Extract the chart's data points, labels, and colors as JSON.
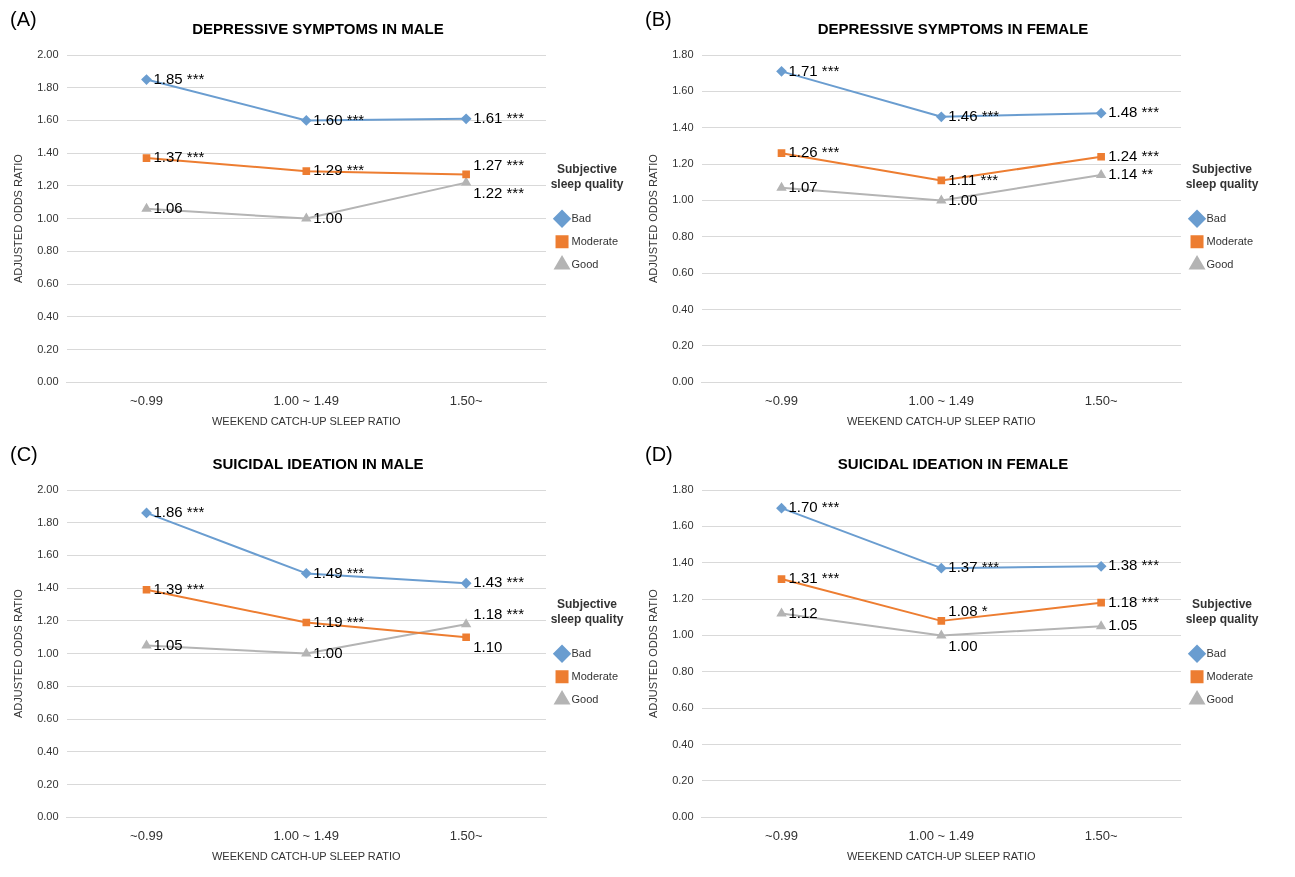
{
  "chart_data": [
    {
      "type": "line",
      "title": "DEPRESSIVE SYMPTOMS IN MALE",
      "xlabel": "WEEKEND CATCH-UP SLEEP RATIO",
      "ylabel": "ADJUSTED ODDS RATIO",
      "legend_title": "Subjective sleep quality",
      "legend": "right",
      "grid": "y",
      "annotations": [
        "(A)"
      ],
      "categories": [
        "~0.99",
        "1.00 ~ 1.49",
        "1.50~"
      ],
      "ylim": [
        0,
        2
      ],
      "yticks": [
        {
          "value": 0,
          "label": "0.00"
        },
        {
          "value": 0.2,
          "label": "0.20"
        },
        {
          "value": 0.4,
          "label": "0.40"
        },
        {
          "value": 0.6,
          "label": "0.60"
        },
        {
          "value": 0.8,
          "label": "0.80"
        },
        {
          "value": 1,
          "label": "1.00"
        },
        {
          "value": 1.2,
          "label": "1.20"
        },
        {
          "value": 1.4,
          "label": "1.40"
        },
        {
          "value": 1.6,
          "label": "1.60"
        },
        {
          "value": 1.8,
          "label": "1.80"
        },
        {
          "value": 2,
          "label": "2.00"
        }
      ],
      "series": [
        {
          "name": "Bad",
          "color": "#6a9dd0",
          "marker": "diamond",
          "values": [
            1.85,
            1.6,
            1.61
          ],
          "value_labels": [
            "1.85 ***",
            "1.60 ***",
            "1.61 ***"
          ]
        },
        {
          "name": "Moderate",
          "color": "#ed7d31",
          "marker": "square",
          "values": [
            1.37,
            1.29,
            1.27
          ],
          "value_labels": [
            "1.37 ***",
            "1.29 ***",
            "1.27 ***"
          ]
        },
        {
          "name": "Good",
          "color": "#b4b4b4",
          "marker": "triangle",
          "values": [
            1.06,
            1.0,
            1.22
          ],
          "value_labels": [
            "1.06",
            "1.00",
            "1.22 ***"
          ]
        }
      ]
    },
    {
      "type": "line",
      "title": "DEPRESSIVE SYMPTOMS IN FEMALE",
      "xlabel": "WEEKEND CATCH-UP SLEEP RATIO",
      "ylabel": "ADJUSTED ODDS RATIO",
      "legend_title": "Subjective sleep quality",
      "legend": "right",
      "grid": "y",
      "annotations": [
        "(B)"
      ],
      "categories": [
        "~0.99",
        "1.00 ~ 1.49",
        "1.50~"
      ],
      "ylim": [
        0,
        1.8
      ],
      "yticks": [
        {
          "value": 0,
          "label": "0.00"
        },
        {
          "value": 0.2,
          "label": "0.20"
        },
        {
          "value": 0.4,
          "label": "0.40"
        },
        {
          "value": 0.6,
          "label": "0.60"
        },
        {
          "value": 0.8,
          "label": "0.80"
        },
        {
          "value": 1,
          "label": "1.00"
        },
        {
          "value": 1.2,
          "label": "1.20"
        },
        {
          "value": 1.4,
          "label": "1.40"
        },
        {
          "value": 1.6,
          "label": "1.60"
        },
        {
          "value": 1.8,
          "label": "1.80"
        }
      ],
      "series": [
        {
          "name": "Bad",
          "color": "#6a9dd0",
          "marker": "diamond",
          "values": [
            1.71,
            1.46,
            1.48
          ],
          "value_labels": [
            "1.71 ***",
            "1.46 ***",
            "1.48 ***"
          ]
        },
        {
          "name": "Moderate",
          "color": "#ed7d31",
          "marker": "square",
          "values": [
            1.26,
            1.11,
            1.24
          ],
          "value_labels": [
            "1.26 ***",
            "1.11 ***",
            "1.24 ***"
          ]
        },
        {
          "name": "Good",
          "color": "#b4b4b4",
          "marker": "triangle",
          "values": [
            1.07,
            1.0,
            1.14
          ],
          "value_labels": [
            "1.07",
            "1.00",
            "1.14 **"
          ]
        }
      ]
    },
    {
      "type": "line",
      "title": "SUICIDAL IDEATION IN MALE",
      "xlabel": "WEEKEND CATCH-UP SLEEP RATIO",
      "ylabel": "ADJUSTED ODDS RATIO",
      "legend_title": "Subjective sleep quality",
      "legend": "right",
      "grid": "y",
      "annotations": [
        "(C)"
      ],
      "categories": [
        "~0.99",
        "1.00 ~ 1.49",
        "1.50~"
      ],
      "ylim": [
        0,
        2
      ],
      "yticks": [
        {
          "value": 0,
          "label": "0.00"
        },
        {
          "value": 0.2,
          "label": "0.20"
        },
        {
          "value": 0.4,
          "label": "0.40"
        },
        {
          "value": 0.6,
          "label": "0.60"
        },
        {
          "value": 0.8,
          "label": "0.80"
        },
        {
          "value": 1,
          "label": "1.00"
        },
        {
          "value": 1.2,
          "label": "1.20"
        },
        {
          "value": 1.4,
          "label": "1.40"
        },
        {
          "value": 1.6,
          "label": "1.60"
        },
        {
          "value": 1.8,
          "label": "1.80"
        },
        {
          "value": 2,
          "label": "2.00"
        }
      ],
      "series": [
        {
          "name": "Bad",
          "color": "#6a9dd0",
          "marker": "diamond",
          "values": [
            1.86,
            1.49,
            1.43
          ],
          "value_labels": [
            "1.86 ***",
            "1.49 ***",
            "1.43 ***"
          ]
        },
        {
          "name": "Moderate",
          "color": "#ed7d31",
          "marker": "square",
          "values": [
            1.39,
            1.19,
            1.1
          ],
          "value_labels": [
            "1.39 ***",
            "1.19 ***",
            "1.10"
          ]
        },
        {
          "name": "Good",
          "color": "#b4b4b4",
          "marker": "triangle",
          "values": [
            1.05,
            1.0,
            1.18
          ],
          "value_labels": [
            "1.05",
            "1.00",
            "1.18 ***"
          ]
        }
      ]
    },
    {
      "type": "line",
      "title": "SUICIDAL IDEATION IN FEMALE",
      "xlabel": "WEEKEND CATCH-UP SLEEP RATIO",
      "ylabel": "ADJUSTED ODDS RATIO",
      "legend_title": "Subjective sleep quality",
      "legend": "right",
      "grid": "y",
      "annotations": [
        "(D)"
      ],
      "categories": [
        "~0.99",
        "1.00 ~ 1.49",
        "1.50~"
      ],
      "ylim": [
        0,
        1.8
      ],
      "yticks": [
        {
          "value": 0,
          "label": "0.00"
        },
        {
          "value": 0.2,
          "label": "0.20"
        },
        {
          "value": 0.4,
          "label": "0.40"
        },
        {
          "value": 0.6,
          "label": "0.60"
        },
        {
          "value": 0.8,
          "label": "0.80"
        },
        {
          "value": 1,
          "label": "1.00"
        },
        {
          "value": 1.2,
          "label": "1.20"
        },
        {
          "value": 1.4,
          "label": "1.40"
        },
        {
          "value": 1.6,
          "label": "1.60"
        },
        {
          "value": 1.8,
          "label": "1.80"
        }
      ],
      "series": [
        {
          "name": "Bad",
          "color": "#6a9dd0",
          "marker": "diamond",
          "values": [
            1.7,
            1.37,
            1.38
          ],
          "value_labels": [
            "1.70 ***",
            "1.37 ***",
            "1.38 ***"
          ]
        },
        {
          "name": "Moderate",
          "color": "#ed7d31",
          "marker": "square",
          "values": [
            1.31,
            1.08,
            1.18
          ],
          "value_labels": [
            "1.31 ***",
            "1.08 *",
            "1.18 ***"
          ]
        },
        {
          "name": "Good",
          "color": "#b4b4b4",
          "marker": "triangle",
          "values": [
            1.12,
            1.0,
            1.05
          ],
          "value_labels": [
            "1.12",
            "1.00",
            "1.05"
          ]
        }
      ]
    }
  ]
}
